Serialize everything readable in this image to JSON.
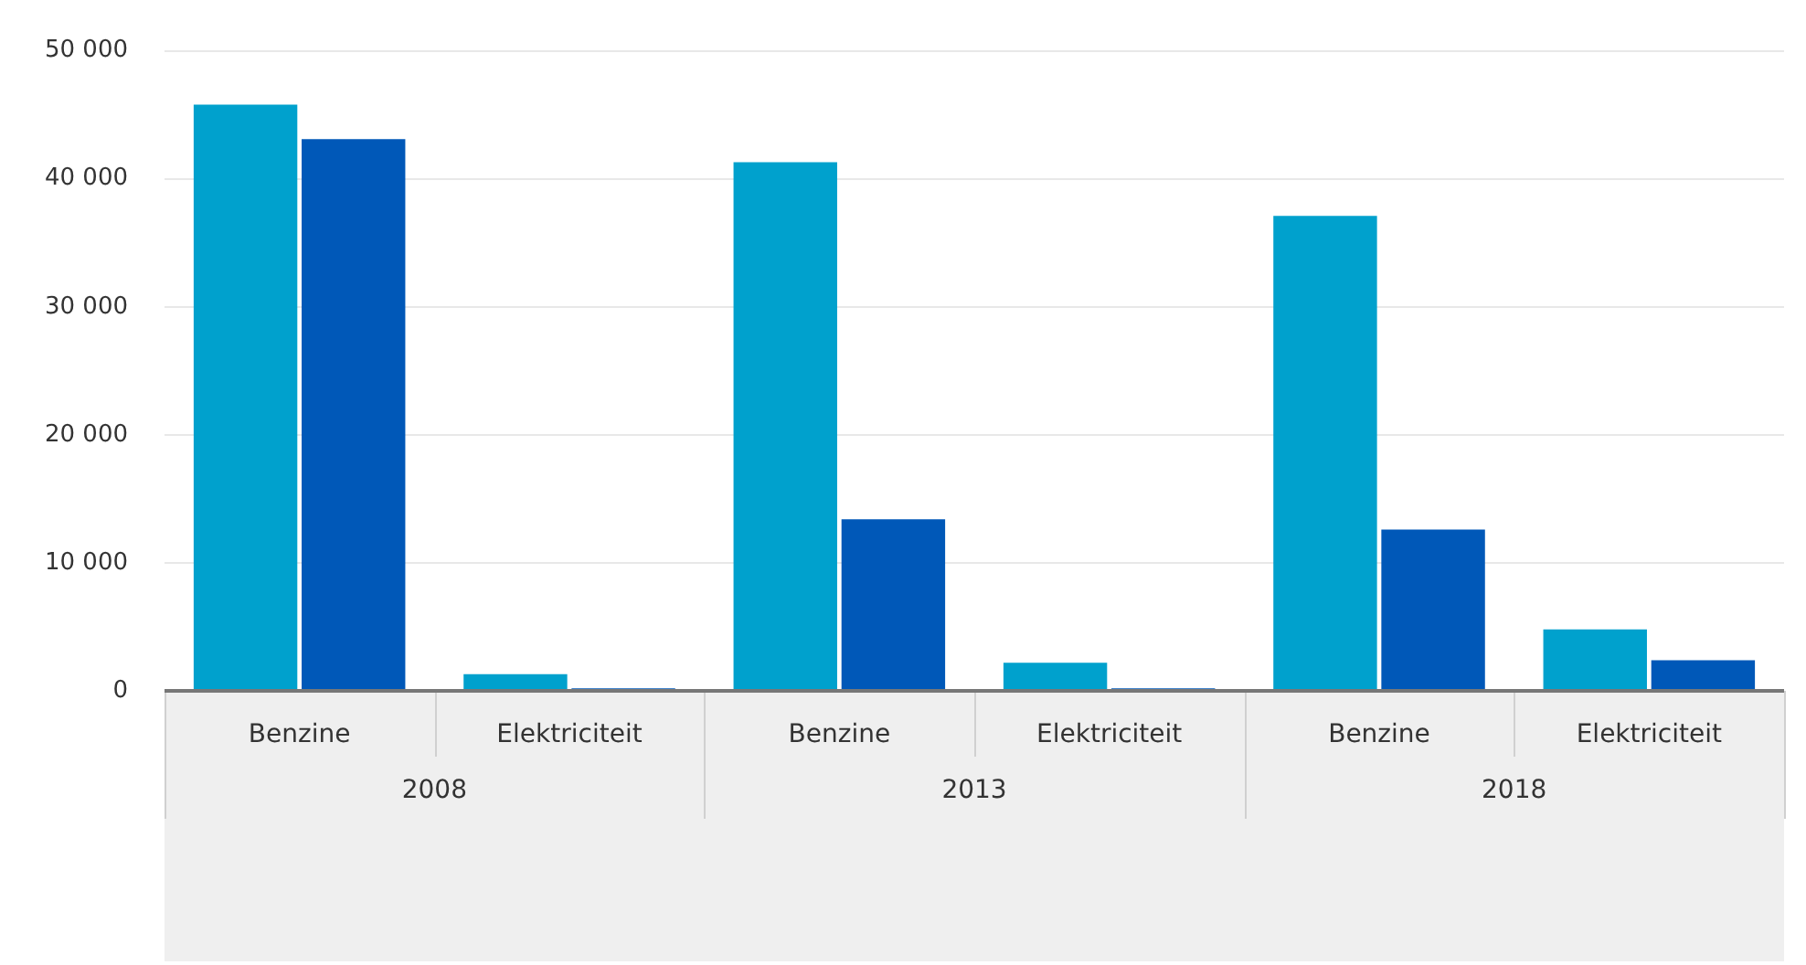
{
  "chart_data": {
    "type": "bar",
    "categories": [
      "Benzine",
      "Elektriciteit",
      "Benzine",
      "Elektriciteit",
      "Benzine",
      "Elektriciteit"
    ],
    "series": [
      {
        "color": "#00a1cd",
        "values": [
          45800,
          1300,
          41300,
          2200,
          37100,
          4800
        ]
      },
      {
        "color": "#0058b8",
        "values": [
          43100,
          200,
          13400,
          200,
          12600,
          2400
        ]
      }
    ],
    "ylim": [
      0,
      50000
    ],
    "yticks": [
      {
        "value": 0,
        "label": "0"
      },
      {
        "value": 10000,
        "label": "10 000"
      },
      {
        "value": 20000,
        "label": "20 000"
      },
      {
        "value": 30000,
        "label": "30 000"
      },
      {
        "value": 40000,
        "label": "40 000"
      },
      {
        "value": 50000,
        "label": "50 000"
      }
    ],
    "annotations": [
      "2008",
      "2013",
      "2018"
    ],
    "grid": "y",
    "legend": false
  }
}
